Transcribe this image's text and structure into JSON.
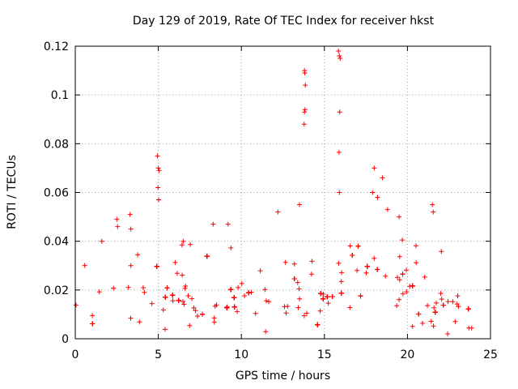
{
  "chart_data": {
    "type": "scatter",
    "title": "Day 129 of 2019, Rate Of TEC Index for receiver hkst",
    "xlabel": "GPS time / hours",
    "ylabel": "ROTI / TECUs",
    "xlim": [
      0,
      25
    ],
    "ylim": [
      0,
      0.12
    ],
    "xticks": [
      0,
      5,
      10,
      15,
      20,
      25
    ],
    "yticks": [
      0,
      0.02,
      0.04,
      0.06,
      0.08,
      0.1,
      0.12
    ],
    "grid": true,
    "marker": "+",
    "color": "#ff0000",
    "series": [
      {
        "name": "ROTI",
        "description_note": "dense cloud of points between 0.005 and 0.045 over 0-24 h with outliers",
        "x": [
          4.95,
          5.0,
          5.05,
          4.98,
          5.02,
          3.3,
          3.35,
          2.5,
          2.55,
          13.8,
          13.82,
          13.85,
          13.83,
          13.8,
          13.78,
          15.85,
          15.9,
          15.95,
          15.88,
          15.92,
          15.9,
          18.0,
          18.5,
          18.2,
          21.5,
          21.55,
          12.2,
          13.5,
          9.2,
          8.3,
          17.9,
          18.8,
          19.5,
          6.5,
          1.6,
          3.35
        ],
        "y": [
          0.075,
          0.07,
          0.069,
          0.062,
          0.057,
          0.051,
          0.045,
          0.049,
          0.046,
          0.11,
          0.109,
          0.104,
          0.094,
          0.093,
          0.088,
          0.118,
          0.116,
          0.115,
          0.0765,
          0.093,
          0.06,
          0.07,
          0.066,
          0.058,
          0.055,
          0.052,
          0.052,
          0.055,
          0.047,
          0.047,
          0.06,
          0.053,
          0.05,
          0.04,
          0.04,
          0.03
        ]
      }
    ]
  },
  "ytick_labels": [
    "0",
    "0.02",
    "0.04",
    "0.06",
    "0.08",
    "0.1",
    "0.12"
  ],
  "xtick_labels": [
    "0",
    "5",
    "10",
    "15",
    "20",
    "25"
  ]
}
